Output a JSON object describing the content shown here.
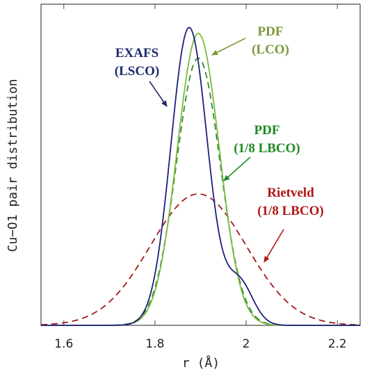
{
  "chart_data": {
    "type": "line",
    "title": "",
    "xlabel": "r (Å)",
    "ylabel": "Cu−O1 pair distribution",
    "xlim": [
      1.55,
      2.25
    ],
    "ylim": [
      0,
      1.1
    ],
    "x_ticks": [
      "1.6",
      "1.8",
      "2",
      "2.2"
    ],
    "x_tick_values": [
      1.6,
      1.8,
      2.0,
      2.2
    ],
    "y_ticks_shown": false,
    "grid": false,
    "legend": "none (inline annotations with arrows)",
    "series": [
      {
        "name": "EXAFS (LSCO)",
        "color": "#1b1f7a",
        "dash": "solid",
        "components": [
          {
            "amplitude": 1.02,
            "center": 1.875,
            "sigma": 0.04
          },
          {
            "amplitude": 0.145,
            "center": 1.985,
            "sigma": 0.03
          }
        ]
      },
      {
        "name": "PDF (LCO)",
        "color": "#7bb83f",
        "dash": "solid",
        "components": [
          {
            "amplitude": 1.0,
            "center": 1.895,
            "sigma": 0.046
          }
        ]
      },
      {
        "name": "PDF (1/8 LBCO)",
        "color": "#2e8b2e",
        "dash": "dashed",
        "components": [
          {
            "amplitude": 0.915,
            "center": 1.895,
            "sigma": 0.048
          }
        ]
      },
      {
        "name": "Rietveld (1/8 LBCO)",
        "color": "#a01818",
        "dash": "dashed",
        "components": [
          {
            "amplitude": 0.45,
            "center": 1.895,
            "sigma": 0.105
          }
        ]
      }
    ],
    "annotations": [
      {
        "line1": "EXAFS",
        "line2": "(LSCO)",
        "color": "#1b2a6b"
      },
      {
        "line1": "PDF",
        "line2": "(LCO)",
        "color": "#7a9a3a"
      },
      {
        "line1": "PDF",
        "line2": "(1/8 LBCO)",
        "color": "#1f8a1f"
      },
      {
        "line1": "Rietveld",
        "line2": "(1/8 LBCO)",
        "color": "#b01515"
      }
    ]
  }
}
